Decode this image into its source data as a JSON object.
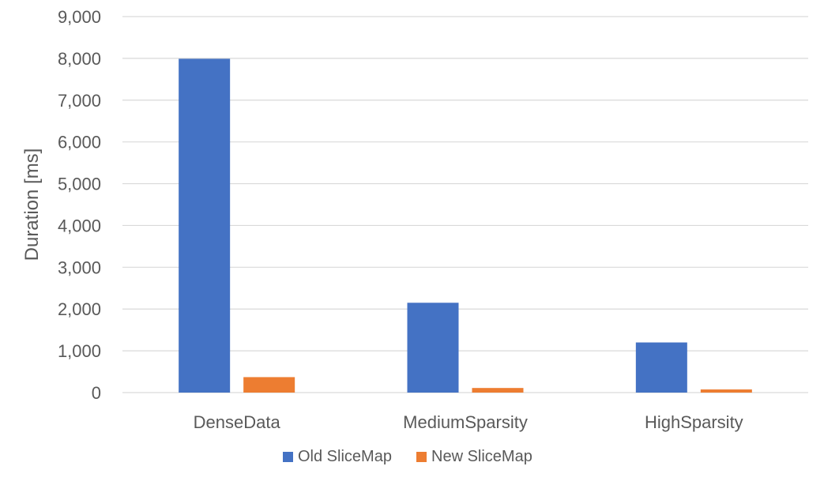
{
  "chart_data": {
    "type": "bar",
    "title": "",
    "xlabel": "",
    "ylabel": "Duration [ms]",
    "ylim": [
      0,
      9000
    ],
    "yticks": [
      0,
      1000,
      2000,
      3000,
      4000,
      5000,
      6000,
      7000,
      8000,
      9000
    ],
    "ytick_labels": [
      "0",
      "1,000",
      "2,000",
      "3,000",
      "4,000",
      "5,000",
      "6,000",
      "7,000",
      "8,000",
      "9,000"
    ],
    "categories": [
      "DenseData",
      "MediumSparsity",
      "HighSparsity"
    ],
    "series": [
      {
        "name": "Old SliceMap",
        "color": "#4472C4",
        "values": [
          7990,
          2150,
          1200
        ]
      },
      {
        "name": "New SliceMap",
        "color": "#ED7D31",
        "values": [
          370,
          110,
          75
        ]
      }
    ],
    "grid": true,
    "legend_position": "bottom"
  }
}
